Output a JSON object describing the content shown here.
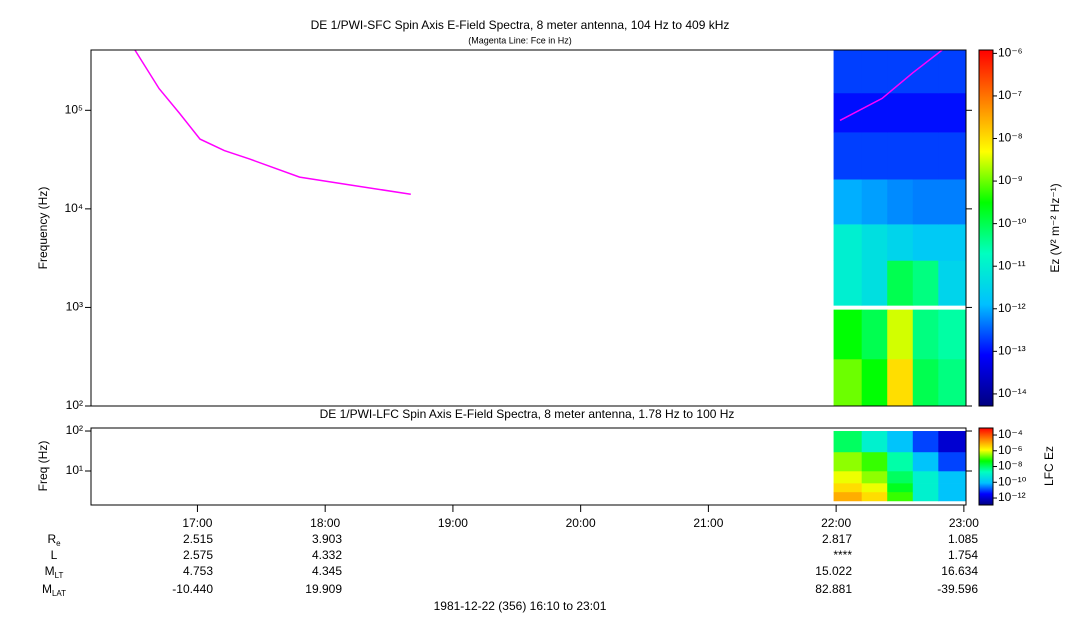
{
  "chart_data": [
    {
      "type": "spectrogram",
      "title": "DE 1/PWI-SFC  Spin Axis E-Field Spectra, 8 meter antenna, 104 Hz to 409 kHz",
      "subtitle": "(Magenta Line: Fce in Hz)",
      "y_label": "Frequency (Hz)",
      "colorbar_label": "Ez (V² m⁻² Hz⁻¹)",
      "xlim": [
        16.1667,
        23.0167
      ],
      "ylim": [
        100,
        409000
      ],
      "log_y": true,
      "yticks": [
        {
          "value": 100,
          "label": "10²"
        },
        {
          "value": 1000,
          "label": "10³"
        },
        {
          "value": 10000,
          "label": "10⁴"
        },
        {
          "value": 100000,
          "label": "10⁵"
        }
      ],
      "x": [
        16.51,
        16.7,
        16.86,
        17.02,
        17.21,
        17.41,
        17.8,
        18.19,
        18.67,
        null,
        22.03,
        22.36,
        22.6,
        22.83
      ],
      "series": [
        {
          "color": "#ff00ff",
          "values": [
            409000,
            166000,
            93000,
            51000,
            39000,
            32000,
            21000,
            17500,
            14100,
            null,
            79000,
            132000,
            240000,
            409000
          ]
        }
      ],
      "time_edges": [
        21.98,
        22.2,
        22.4,
        22.6,
        22.8,
        23.0167
      ],
      "freq_edges": [
        100,
        300,
        950,
        1050,
        3000,
        7000,
        20000,
        60000,
        150000,
        409000
      ],
      "z": [
        [
          1e-09,
          3e-10,
          1e-08,
          1e-10,
          5e-11
        ],
        [
          3e-10,
          1e-10,
          3e-09,
          5e-11,
          3e-11
        ],
        [
          null,
          null,
          null,
          null,
          null
        ],
        [
          1e-11,
          5e-12,
          1e-10,
          5e-11,
          3e-12
        ],
        [
          1e-11,
          5e-12,
          3e-12,
          2e-12,
          2e-12
        ],
        [
          1e-12,
          8e-13,
          6e-13,
          5e-13,
          5e-13
        ],
        [
          2e-13,
          2e-13,
          2e-13,
          2e-13,
          2e-13
        ],
        [
          1e-13,
          1e-13,
          1e-13,
          1e-13,
          1e-13
        ],
        [
          2e-13,
          2e-13,
          2e-13,
          2e-13,
          2e-13
        ]
      ],
      "zlim": [
        5.2e-15,
        1.2e-06
      ],
      "log_z": true,
      "zticks": [
        {
          "value": 1e-06,
          "label": "10⁻⁶"
        },
        {
          "value": 1e-07,
          "label": "10⁻⁷"
        },
        {
          "value": 1e-08,
          "label": "10⁻⁸"
        },
        {
          "value": 1e-09,
          "label": "10⁻⁹"
        },
        {
          "value": 1e-10,
          "label": "10⁻¹⁰"
        },
        {
          "value": 1e-11,
          "label": "10⁻¹¹"
        },
        {
          "value": 1e-12,
          "label": "10⁻¹²"
        },
        {
          "value": 1e-13,
          "label": "10⁻¹³"
        },
        {
          "value": 1e-14,
          "label": "10⁻¹⁴"
        }
      ],
      "colormap": [
        "#000080",
        "#0000ff",
        "#00c0ff",
        "#00ffc0",
        "#00ff00",
        "#ffff00",
        "#ff8000",
        "#ff0000"
      ]
    },
    {
      "type": "spectrogram",
      "title": "DE 1/PWI-LFC  Spin Axis E-Field Spectra, 8 meter antenna, 1.78 Hz to 100 Hz",
      "y_label": "Freq (Hz)",
      "colorbar_label": "LFC Ez",
      "xlim": [
        16.1667,
        23.0167
      ],
      "xticks": [
        {
          "value": 17,
          "label": "17:00"
        },
        {
          "value": 18,
          "label": "18:00"
        },
        {
          "value": 19,
          "label": "19:00"
        },
        {
          "value": 20,
          "label": "20:00"
        },
        {
          "value": 21,
          "label": "21:00"
        },
        {
          "value": 22,
          "label": "22:00"
        },
        {
          "value": 23,
          "label": "23:00"
        }
      ],
      "ylim": [
        1.41,
        119
      ],
      "log_y": true,
      "yticks": [
        {
          "value": 10,
          "label": "10¹"
        },
        {
          "value": 100,
          "label": "10²"
        }
      ],
      "time_edges": [
        21.98,
        22.2,
        22.4,
        22.6,
        22.8,
        23.0167
      ],
      "freq_edges": [
        1.78,
        3,
        5,
        10,
        30,
        100
      ],
      "z": [
        [
          1e-05,
          3e-06,
          1e-07,
          1e-09,
          1e-10
        ],
        [
          3e-06,
          1e-06,
          3e-08,
          1e-09,
          1e-10
        ],
        [
          1e-06,
          3e-07,
          1e-08,
          1e-09,
          1e-10
        ],
        [
          3e-07,
          1e-07,
          3e-09,
          1e-10,
          1e-11
        ],
        [
          1e-08,
          1e-09,
          1e-10,
          1e-11,
          1e-12
        ]
      ],
      "zlim": [
        1.3e-13,
        0.00078
      ],
      "log_z": true,
      "zticks": [
        {
          "value": 0.0001,
          "label": "10⁻⁴"
        },
        {
          "value": 1e-06,
          "label": "10⁻⁶"
        },
        {
          "value": 1e-08,
          "label": "10⁻⁸"
        },
        {
          "value": 1e-10,
          "label": "10⁻¹⁰"
        },
        {
          "value": 1e-12,
          "label": "10⁻¹²"
        }
      ],
      "colormap": [
        "#000080",
        "#0000ff",
        "#00c0ff",
        "#00ffc0",
        "#00ff00",
        "#ffff00",
        "#ff8000",
        "#ff0000"
      ]
    }
  ],
  "ephemeris": {
    "rows": [
      {
        "label": "R",
        "sub": "e",
        "values": [
          "2.515",
          "3.903",
          "2.817",
          "1.085"
        ]
      },
      {
        "label": "L",
        "values": [
          "2.575",
          "4.332",
          "****",
          "1.754"
        ]
      },
      {
        "label": "M",
        "sub": "LT",
        "values": [
          "4.753",
          "4.345",
          "15.022",
          "16.634"
        ]
      },
      {
        "label": "M",
        "sub": "LAT",
        "values": [
          "-10.440",
          "19.909",
          "82.881",
          "-39.596"
        ]
      }
    ]
  },
  "footer": "1981-12-22 (356) 16:10 to 23:01"
}
